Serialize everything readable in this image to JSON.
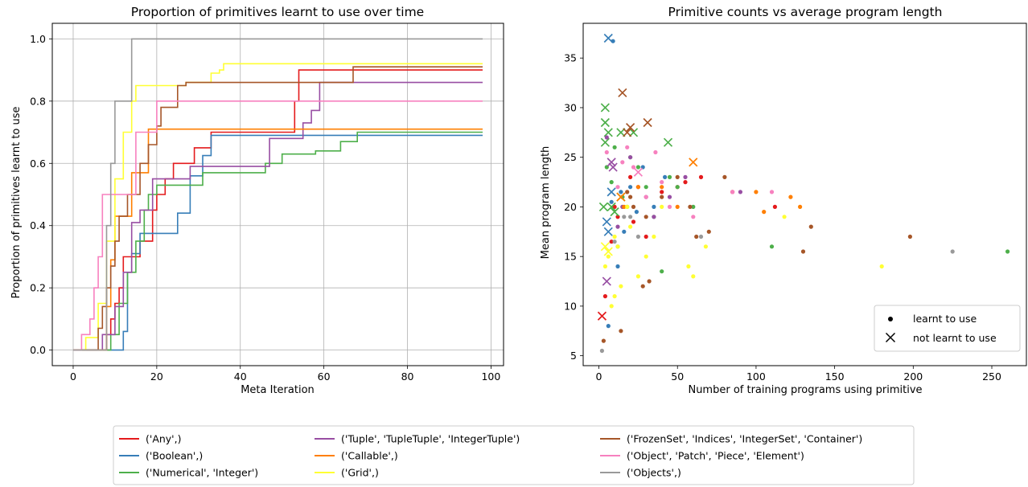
{
  "category_colors": {
    "('Any',)": "#e41a1c",
    "('Boolean',)": "#377eb8",
    "('Numerical', 'Integer')": "#4daf4a",
    "('Tuple', 'TupleTuple', 'IntegerTuple')": "#984ea3",
    "('Callable',)": "#ff7f00",
    "('Grid',)": "#ffff33",
    "('FrozenSet', 'Indices', 'IntegerSet', 'Container')": "#a65628",
    "('Object', 'Patch', 'Piece', 'Element')": "#f781bf",
    "('Objects',)": "#999999"
  },
  "figure_legend": {
    "entries": [
      "('Any',)",
      "('Boolean',)",
      "('Numerical', 'Integer')",
      "('Tuple', 'TupleTuple', 'IntegerTuple')",
      "('Callable',)",
      "('Grid',)",
      "('FrozenSet', 'Indices', 'IntegerSet', 'Container')",
      "('Object', 'Patch', 'Piece', 'Element')",
      "('Objects',)"
    ],
    "placement": "bottom-center",
    "columns": 3
  },
  "chart_data": [
    {
      "type": "line",
      "title": "Proportion of primitives learnt to use over time",
      "xlabel": "Meta Iteration",
      "ylabel": "Proportion of primitives learnt to use",
      "xlim": [
        -5,
        103
      ],
      "ylim": [
        -0.05,
        1.05
      ],
      "xticks": [
        0,
        20,
        40,
        60,
        80,
        100
      ],
      "yticks": [
        0.0,
        0.2,
        0.4,
        0.6,
        0.8,
        1.0
      ],
      "grid": true,
      "step": true,
      "series": [
        {
          "name": "('Any',)",
          "x": [
            0,
            6,
            8,
            9,
            10,
            11,
            12,
            16,
            19,
            20,
            22,
            24,
            29,
            32,
            33,
            45,
            53,
            54,
            67,
            98
          ],
          "y": [
            0,
            0,
            0.05,
            0.1,
            0.15,
            0.2,
            0.3,
            0.35,
            0.45,
            0.5,
            0.55,
            0.6,
            0.65,
            0.65,
            0.7,
            0.7,
            0.8,
            0.9,
            0.9,
            0.9
          ]
        },
        {
          "name": "('Boolean',)",
          "x": [
            0,
            11,
            12,
            13,
            14,
            16,
            22,
            25,
            28,
            31,
            33,
            98
          ],
          "y": [
            0,
            0,
            0.06,
            0.25,
            0.31,
            0.375,
            0.375,
            0.44,
            0.56,
            0.625,
            0.69,
            0.69
          ]
        },
        {
          "name": "('Numerical', 'Integer')",
          "x": [
            0,
            7,
            9,
            11,
            13,
            15,
            17,
            18,
            20,
            29,
            31,
            46,
            50,
            56,
            58,
            64,
            68,
            98
          ],
          "y": [
            0,
            0,
            0.05,
            0.15,
            0.25,
            0.35,
            0.45,
            0.5,
            0.53,
            0.53,
            0.57,
            0.6,
            0.63,
            0.63,
            0.64,
            0.67,
            0.7,
            0.7
          ]
        },
        {
          "name": "('Tuple', 'TupleTuple', 'IntegerTuple')",
          "x": [
            0,
            5,
            7,
            10,
            12,
            14,
            16,
            19,
            25,
            28,
            45,
            47,
            53,
            55,
            57,
            59,
            98
          ],
          "y": [
            0,
            0,
            0.05,
            0.14,
            0.25,
            0.41,
            0.45,
            0.55,
            0.55,
            0.59,
            0.59,
            0.68,
            0.68,
            0.73,
            0.77,
            0.86,
            0.86
          ]
        },
        {
          "name": "('Callable',)",
          "x": [
            0,
            6,
            8,
            9,
            10,
            12,
            14,
            17,
            18,
            20,
            98
          ],
          "y": [
            0,
            0,
            0.14,
            0.29,
            0.43,
            0.43,
            0.57,
            0.57,
            0.71,
            0.71,
            0.71
          ]
        },
        {
          "name": "('Grid',)",
          "x": [
            0,
            3,
            6,
            8,
            10,
            12,
            14,
            15,
            24,
            27,
            30,
            33,
            35,
            36,
            98
          ],
          "y": [
            0,
            0.04,
            0.15,
            0.35,
            0.55,
            0.7,
            0.8,
            0.85,
            0.85,
            0.86,
            0.86,
            0.89,
            0.9,
            0.92,
            0.92
          ]
        },
        {
          "name": "('FrozenSet', 'Indices', 'IntegerSet', 'Container')",
          "x": [
            0,
            4,
            6,
            7,
            8,
            9,
            10,
            11,
            13,
            16,
            18,
            20,
            21,
            25,
            27,
            67,
            98
          ],
          "y": [
            0,
            0,
            0.07,
            0.14,
            0.2,
            0.27,
            0.35,
            0.43,
            0.5,
            0.6,
            0.66,
            0.72,
            0.78,
            0.85,
            0.86,
            0.91,
            0.91
          ]
        },
        {
          "name": "('Object', 'Patch', 'Piece', 'Element')",
          "x": [
            0,
            2,
            4,
            5,
            6,
            7,
            12,
            15,
            19,
            20,
            98
          ],
          "y": [
            0,
            0.05,
            0.1,
            0.2,
            0.3,
            0.5,
            0.5,
            0.7,
            0.7,
            0.8,
            0.8
          ]
        },
        {
          "name": "('Objects',)",
          "x": [
            0,
            7,
            8,
            9,
            10,
            13,
            14,
            98
          ],
          "y": [
            0,
            0,
            0.4,
            0.6,
            0.8,
            0.8,
            1.0,
            1.0
          ]
        }
      ]
    },
    {
      "type": "scatter",
      "title": "Primitive counts vs average program length",
      "xlabel": "Number of training programs using primitive",
      "ylabel": "Mean program length",
      "xlim": [
        -10,
        272
      ],
      "ylim": [
        4,
        38.5
      ],
      "xticks": [
        0,
        50,
        100,
        150,
        200,
        250
      ],
      "yticks": [
        5,
        10,
        15,
        20,
        25,
        30,
        35
      ],
      "grid": false,
      "legend": {
        "placement": "lower-right",
        "entries": [
          "learnt to use",
          "not learnt to use"
        ]
      },
      "series": [
        {
          "name": "('Any',)",
          "learnt": [
            [
              4,
              11
            ],
            [
              8,
              16.5
            ],
            [
              12,
              19
            ],
            [
              15,
              21
            ],
            [
              20,
              23
            ],
            [
              25,
              22
            ],
            [
              40,
              21.5
            ],
            [
              50,
              22
            ],
            [
              55,
              22.5
            ],
            [
              65,
              23
            ],
            [
              112,
              20
            ],
            [
              85,
              21.5
            ],
            [
              22,
              18.5
            ],
            [
              30,
              17
            ],
            [
              10,
              20
            ]
          ],
          "not_learnt": [
            [
              2,
              9
            ]
          ]
        },
        {
          "name": "('Boolean',)",
          "learnt": [
            [
              6,
              8
            ],
            [
              12,
              14
            ],
            [
              20,
              22
            ],
            [
              28,
              24
            ],
            [
              35,
              20
            ],
            [
              42,
              23
            ],
            [
              8,
              20.5
            ],
            [
              16,
              17.5
            ],
            [
              24,
              19.5
            ],
            [
              14,
              21.5
            ],
            [
              9,
              36.7
            ]
          ],
          "not_learnt": [
            [
              6,
              37
            ],
            [
              6,
              17.5
            ],
            [
              5,
              18.5
            ],
            [
              8,
              21.5
            ]
          ]
        },
        {
          "name": "('Numerical', 'Integer')",
          "learnt": [
            [
              5,
              24
            ],
            [
              10,
              26
            ],
            [
              15,
              21
            ],
            [
              20,
              25
            ],
            [
              25,
              24
            ],
            [
              30,
              22
            ],
            [
              35,
              19
            ],
            [
              40,
              13.5
            ],
            [
              50,
              22
            ],
            [
              110,
              16
            ],
            [
              260,
              15.5
            ],
            [
              60,
              20
            ],
            [
              12,
              16
            ],
            [
              18,
              20
            ],
            [
              45,
              23
            ],
            [
              8,
              22.5
            ]
          ],
          "not_learnt": [
            [
              4,
              30
            ],
            [
              4,
              28.5
            ],
            [
              4,
              26.5
            ],
            [
              6,
              27.5
            ],
            [
              14,
              27.5
            ],
            [
              22,
              27.5
            ],
            [
              44,
              26.5
            ],
            [
              3,
              20
            ],
            [
              8,
              20
            ],
            [
              10,
              19.5
            ],
            [
              14,
              21
            ]
          ]
        },
        {
          "name": "('Tuple', 'TupleTuple', 'IntegerTuple')",
          "learnt": [
            [
              5,
              27
            ],
            [
              15,
              20
            ],
            [
              20,
              25
            ],
            [
              30,
              21
            ],
            [
              45,
              21
            ],
            [
              55,
              23
            ],
            [
              90,
              21.5
            ],
            [
              12,
              18
            ],
            [
              35,
              19
            ]
          ],
          "not_learnt": [
            [
              8,
              24.5
            ],
            [
              9,
              24
            ],
            [
              5,
              12.5
            ]
          ]
        },
        {
          "name": "('Callable',)",
          "learnt": [
            [
              25,
              22
            ],
            [
              50,
              20
            ],
            [
              100,
              21.5
            ],
            [
              105,
              19.5
            ],
            [
              122,
              21
            ],
            [
              128,
              20
            ],
            [
              40,
              22
            ],
            [
              16,
              20
            ]
          ],
          "not_learnt": [
            [
              60,
              24.5
            ],
            [
              14,
              21
            ]
          ]
        },
        {
          "name": "('Grid',)",
          "learnt": [
            [
              4,
              14
            ],
            [
              6,
              15
            ],
            [
              8,
              10
            ],
            [
              10,
              11
            ],
            [
              12,
              16
            ],
            [
              14,
              12
            ],
            [
              18,
              20
            ],
            [
              25,
              13
            ],
            [
              30,
              15
            ],
            [
              35,
              17
            ],
            [
              40,
              20
            ],
            [
              57,
              14
            ],
            [
              60,
              13
            ],
            [
              68,
              16
            ],
            [
              118,
              19
            ],
            [
              180,
              14
            ],
            [
              10,
              17
            ],
            [
              20,
              18
            ]
          ],
          "not_learnt": [
            [
              4,
              16
            ],
            [
              6,
              15.5
            ]
          ]
        },
        {
          "name": "('FrozenSet', 'Indices', 'IntegerSet', 'Container')",
          "learnt": [
            [
              3,
              6.5
            ],
            [
              14,
              7.5
            ],
            [
              20,
              21
            ],
            [
              30,
              19
            ],
            [
              40,
              21
            ],
            [
              50,
              23
            ],
            [
              58,
              20
            ],
            [
              62,
              17
            ],
            [
              80,
              23
            ],
            [
              130,
              15.5
            ],
            [
              135,
              18
            ],
            [
              198,
              17
            ],
            [
              28,
              12
            ],
            [
              32,
              12.5
            ],
            [
              18,
              21.5
            ],
            [
              70,
              17.5
            ],
            [
              22,
              20
            ]
          ],
          "not_learnt": [
            [
              15,
              31.5
            ],
            [
              20,
              28
            ],
            [
              31,
              28.5
            ],
            [
              18,
              27.5
            ]
          ]
        },
        {
          "name": "('Object', 'Patch', 'Piece', 'Element')",
          "learnt": [
            [
              5,
              25.5
            ],
            [
              12,
              22
            ],
            [
              18,
              26
            ],
            [
              22,
              24
            ],
            [
              30,
              21
            ],
            [
              36,
              25.5
            ],
            [
              45,
              20
            ],
            [
              60,
              19
            ],
            [
              85,
              21.5
            ],
            [
              110,
              21.5
            ],
            [
              15,
              24.5
            ],
            [
              40,
              22.5
            ]
          ],
          "not_learnt": [
            [
              25,
              23.5
            ]
          ]
        },
        {
          "name": "('Objects',)",
          "learnt": [
            [
              2,
              5.5
            ],
            [
              20,
              19
            ],
            [
              25,
              17
            ],
            [
              65,
              17
            ],
            [
              225,
              15.5
            ],
            [
              10,
              16.5
            ],
            [
              16,
              19
            ]
          ],
          "not_learnt": []
        }
      ]
    }
  ]
}
